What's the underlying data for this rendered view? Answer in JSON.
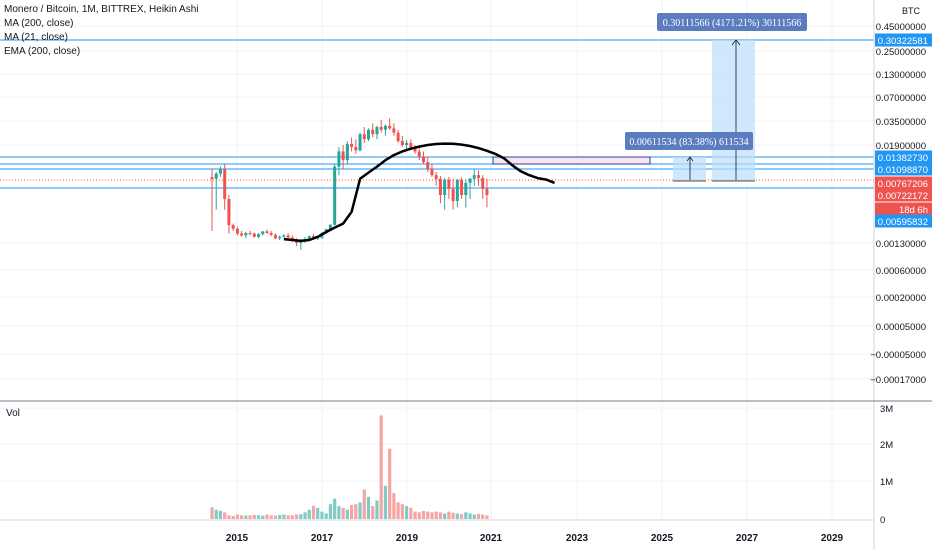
{
  "legend": {
    "title": "Monero / Bitcoin, 1M, BITTREX, Heikin Ashi",
    "indicators": [
      "MA (200, close)",
      "MA (21, close)",
      "EMA (200, close)"
    ]
  },
  "volume_label": "Vol",
  "colors": {
    "up": "#26a69a",
    "down": "#ef5350",
    "up_vol": "#80cbc4",
    "down_vol": "#f5a6a4",
    "hline": "#2196f3",
    "ma_line": "#000000",
    "measure_fill": "#bbdefb",
    "tooltip_bg": "#5b7cbf",
    "price_tag_red": "#ef5350",
    "price_tag_blue": "#2196f3"
  },
  "price_axis": {
    "unit": "BTC",
    "ticks": [
      "0.45000000",
      "0.25000000",
      "0.13000000",
      "0.07000000",
      "0.03500000",
      "0.01900000",
      "0.00130000",
      "0.00060000",
      "0.00020000",
      "0.00005000",
      "−0.00005000",
      "−0.00017000"
    ]
  },
  "price_tags": [
    {
      "value": "0.30322581",
      "style": "blue"
    },
    {
      "value": "0.01382730",
      "style": "blue"
    },
    {
      "value": "0.01098870",
      "style": "blue"
    },
    {
      "value": "0.00767206",
      "style": "red"
    },
    {
      "value": "0.00722172",
      "style": "red"
    },
    {
      "value": "18d 6h",
      "style": "red"
    },
    {
      "value": "0.00595832",
      "style": "blue"
    }
  ],
  "volume_axis": {
    "ticks": [
      "3M",
      "2M",
      "1M",
      "0"
    ]
  },
  "time_axis": {
    "ticks": [
      "2015",
      "2017",
      "2019",
      "2021",
      "2023",
      "2025",
      "2027",
      "2029"
    ]
  },
  "annotations": {
    "measure_large": "0.30111566 (4171.21%) 30111566",
    "measure_small": "0.00611534 (83.38%) 611534"
  },
  "chart_data": {
    "type": "candlestick",
    "symbol": "Monero / Bitcoin",
    "interval": "1M",
    "exchange": "BITTREX",
    "x_range": [
      "2014",
      "2029"
    ],
    "candles": [
      [
        0.0085,
        0.011,
        0.003,
        0.008
      ],
      [
        0.008,
        0.01,
        0.0065,
        0.0095
      ],
      [
        0.0095,
        0.0115,
        0.0085,
        0.011
      ],
      [
        0.011,
        0.012,
        0.0065,
        0.007
      ],
      [
        0.007,
        0.0072,
        0.0025,
        0.0045
      ],
      [
        0.0045,
        0.005,
        0.003,
        0.0035
      ],
      [
        0.0035,
        0.004,
        0.0022,
        0.0025
      ],
      [
        0.0025,
        0.003,
        0.002,
        0.0022
      ],
      [
        0.0022,
        0.0028,
        0.0018,
        0.0026
      ],
      [
        0.0026,
        0.003,
        0.0022,
        0.0025
      ],
      [
        0.0025,
        0.0027,
        0.0019,
        0.002
      ],
      [
        0.002,
        0.0026,
        0.0018,
        0.0024
      ],
      [
        0.0024,
        0.003,
        0.0022,
        0.0029
      ],
      [
        0.0029,
        0.0033,
        0.0025,
        0.0026
      ],
      [
        0.0026,
        0.003,
        0.0021,
        0.0023
      ],
      [
        0.0023,
        0.0025,
        0.0017,
        0.0018
      ],
      [
        0.0018,
        0.0022,
        0.0016,
        0.002
      ],
      [
        0.002,
        0.0024,
        0.0018,
        0.0022
      ],
      [
        0.0022,
        0.0026,
        0.0018,
        0.0019
      ],
      [
        0.0019,
        0.0022,
        0.0014,
        0.0015
      ],
      [
        0.0015,
        0.0018,
        0.0012,
        0.0013
      ],
      [
        0.0013,
        0.0017,
        0.0011,
        0.0016
      ],
      [
        0.0016,
        0.002,
        0.0013,
        0.0017
      ],
      [
        0.0017,
        0.0022,
        0.0015,
        0.0021
      ],
      [
        0.0021,
        0.0024,
        0.0017,
        0.0018
      ],
      [
        0.0018,
        0.002,
        0.0016,
        0.0019
      ],
      [
        0.0019,
        0.0028,
        0.0017,
        0.0026
      ],
      [
        0.0026,
        0.0035,
        0.0024,
        0.0034
      ],
      [
        0.0034,
        0.0048,
        0.003,
        0.0046
      ],
      [
        0.0046,
        0.012,
        0.0044,
        0.0115
      ],
      [
        0.0115,
        0.018,
        0.009,
        0.016
      ],
      [
        0.016,
        0.019,
        0.011,
        0.013
      ],
      [
        0.013,
        0.021,
        0.012,
        0.0195
      ],
      [
        0.0195,
        0.023,
        0.016,
        0.018
      ],
      [
        0.018,
        0.022,
        0.015,
        0.0165
      ],
      [
        0.0165,
        0.026,
        0.016,
        0.025
      ],
      [
        0.025,
        0.03,
        0.02,
        0.022
      ],
      [
        0.022,
        0.029,
        0.021,
        0.028
      ],
      [
        0.028,
        0.033,
        0.023,
        0.025
      ],
      [
        0.025,
        0.031,
        0.022,
        0.03
      ],
      [
        0.03,
        0.036,
        0.026,
        0.028
      ],
      [
        0.028,
        0.032,
        0.024,
        0.031
      ],
      [
        0.031,
        0.038,
        0.028,
        0.029
      ],
      [
        0.029,
        0.033,
        0.024,
        0.026
      ],
      [
        0.026,
        0.028,
        0.02,
        0.021
      ],
      [
        0.021,
        0.024,
        0.018,
        0.019
      ],
      [
        0.019,
        0.0215,
        0.017,
        0.02
      ],
      [
        0.02,
        0.022,
        0.0165,
        0.0175
      ],
      [
        0.0175,
        0.019,
        0.015,
        0.016
      ],
      [
        0.016,
        0.0175,
        0.013,
        0.014
      ],
      [
        0.014,
        0.016,
        0.012,
        0.0125
      ],
      [
        0.0125,
        0.014,
        0.01,
        0.011
      ],
      [
        0.011,
        0.012,
        0.0085,
        0.009
      ],
      [
        0.009,
        0.01,
        0.0075,
        0.008
      ],
      [
        0.008,
        0.0088,
        0.0068,
        0.0072
      ],
      [
        0.0072,
        0.0082,
        0.0065,
        0.0078
      ],
      [
        0.0078,
        0.0085,
        0.007,
        0.0074
      ],
      [
        0.0074,
        0.008,
        0.0065,
        0.0069
      ],
      [
        0.0069,
        0.008,
        0.0066,
        0.0077
      ],
      [
        0.0077,
        0.0084,
        0.007,
        0.0072
      ],
      [
        0.0072,
        0.0079,
        0.0066,
        0.0076
      ],
      [
        0.0076,
        0.0083,
        0.007,
        0.008
      ],
      [
        0.008,
        0.011,
        0.0075,
        0.009
      ],
      [
        0.009,
        0.0105,
        0.0075,
        0.0082
      ],
      [
        0.0082,
        0.009,
        0.007,
        0.0074
      ],
      [
        0.0074,
        0.008,
        0.0066,
        0.0072
      ]
    ],
    "moving_average": {
      "points": [
        [
          0.0017,
          0.0016,
          0.0015,
          0.0016,
          0.002,
          0.0028,
          0.0038,
          0.005,
          0.0064,
          0.008,
          0.0098,
          0.0115,
          0.013,
          0.0145,
          0.016,
          0.0172,
          0.0182,
          0.019,
          0.0195,
          0.0197,
          0.0196,
          0.0192,
          0.0185,
          0.0175,
          0.0163,
          0.015,
          0.0135,
          0.0118,
          0.0102,
          0.009,
          0.0082,
          0.0078,
          0.0076
        ]
      ]
    },
    "volume_m": [
      0.32,
      0.25,
      0.22,
      0.18,
      0.1,
      0.08,
      0.12,
      0.1,
      0.09,
      0.1,
      0.11,
      0.1,
      0.09,
      0.12,
      0.1,
      0.09,
      0.11,
      0.12,
      0.1,
      0.1,
      0.12,
      0.13,
      0.18,
      0.25,
      0.36,
      0.3,
      0.2,
      0.15,
      0.4,
      0.55,
      0.35,
      0.3,
      0.25,
      0.38,
      0.4,
      0.45,
      0.8,
      0.6,
      0.35,
      0.5,
      2.8,
      0.9,
      1.9,
      0.7,
      0.45,
      0.4,
      0.35,
      0.3,
      0.2,
      0.18,
      0.22,
      0.2,
      0.18,
      0.2,
      0.18,
      0.15,
      0.2,
      0.17,
      0.15,
      0.13,
      0.18,
      0.15,
      0.12,
      0.14,
      0.12,
      0.1
    ]
  }
}
